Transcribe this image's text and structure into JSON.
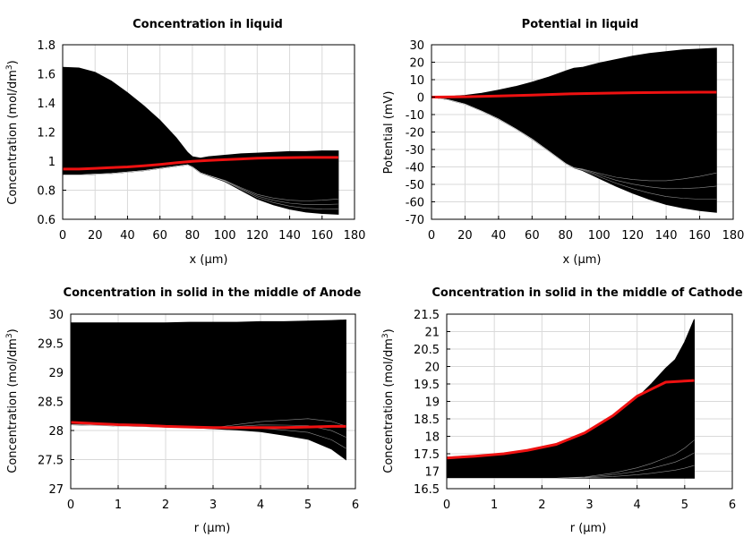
{
  "chart_data": [
    {
      "id": "p1",
      "type": "line",
      "title": "Concentration in liquid",
      "xlabel": "x (µm)",
      "ylabel": "Concentration (mol/dm",
      "ylabel_sup": "3",
      "ylabel_end": ")",
      "xlim": [
        0,
        180
      ],
      "ylim": [
        0.6,
        1.8
      ],
      "xticks": [
        "0",
        "20",
        "40",
        "60",
        "80",
        "100",
        "120",
        "140",
        "160",
        "180"
      ],
      "yticks": [
        "0.6",
        "0.8",
        "1",
        "1.2",
        "1.4",
        "1.6",
        "1.8"
      ],
      "grid": true,
      "band": {
        "x": [
          0,
          10,
          20,
          30,
          40,
          50,
          60,
          70,
          77,
          80,
          85,
          90,
          100,
          110,
          120,
          130,
          140,
          150,
          160,
          170
        ],
        "upper": [
          1.645,
          1.64,
          1.61,
          1.55,
          1.47,
          1.38,
          1.28,
          1.16,
          1.06,
          1.03,
          1.02,
          1.03,
          1.04,
          1.05,
          1.055,
          1.06,
          1.065,
          1.065,
          1.07,
          1.07
        ],
        "lower": [
          0.905,
          0.905,
          0.91,
          0.915,
          0.925,
          0.935,
          0.95,
          0.965,
          0.975,
          0.96,
          0.92,
          0.9,
          0.86,
          0.8,
          0.74,
          0.7,
          0.67,
          0.65,
          0.64,
          0.635
        ]
      },
      "series": [
        {
          "name": "",
          "color": "#ee1111",
          "x": [
            0,
            10,
            20,
            30,
            40,
            50,
            60,
            70,
            80,
            90,
            100,
            110,
            120,
            130,
            140,
            150,
            160,
            170
          ],
          "values": [
            0.945,
            0.945,
            0.95,
            0.955,
            0.96,
            0.968,
            0.977,
            0.988,
            0.998,
            1.005,
            1.01,
            1.015,
            1.02,
            1.022,
            1.024,
            1.025,
            1.025,
            1.025
          ]
        }
      ]
    },
    {
      "id": "p2",
      "type": "line",
      "title": "Potential in liquid",
      "xlabel": "x (µm)",
      "ylabel": "Potential (mV)",
      "ylabel_sup": "",
      "ylabel_end": "",
      "xlim": [
        0,
        180
      ],
      "ylim": [
        -70,
        30
      ],
      "xticks": [
        "0",
        "20",
        "40",
        "60",
        "80",
        "100",
        "120",
        "140",
        "160",
        "180"
      ],
      "yticks": [
        "-70",
        "-60",
        "-50",
        "-40",
        "-30",
        "-20",
        "-10",
        "0",
        "10",
        "20",
        "30"
      ],
      "grid": true,
      "band": {
        "x": [
          0,
          10,
          20,
          30,
          40,
          50,
          60,
          70,
          80,
          85,
          90,
          100,
          110,
          120,
          130,
          140,
          150,
          160,
          170
        ],
        "upper": [
          0,
          0.3,
          1,
          2.2,
          4,
          6,
          8.5,
          11.5,
          15,
          16.5,
          17,
          19.5,
          21.5,
          23.5,
          25,
          26,
          27,
          27.5,
          28
        ],
        "lower": [
          0,
          -1.5,
          -4,
          -8,
          -12.5,
          -18,
          -24,
          -31,
          -38,
          -40.5,
          -42,
          -46.5,
          -51,
          -55,
          -58.5,
          -61.5,
          -63.5,
          -65,
          -66
        ]
      },
      "series": [
        {
          "name": "",
          "color": "#ee1111",
          "x": [
            0,
            20,
            40,
            60,
            80,
            100,
            120,
            140,
            160,
            170
          ],
          "values": [
            0,
            0.2,
            0.6,
            1.2,
            1.8,
            2.2,
            2.5,
            2.7,
            2.8,
            2.8
          ]
        }
      ]
    },
    {
      "id": "p3",
      "type": "line",
      "title": "Concentration in solid in the middle of Anode",
      "xlabel": "r (µm)",
      "ylabel": "Concentration (mol/dm",
      "ylabel_sup": "3",
      "ylabel_end": ")",
      "xlim": [
        0,
        6
      ],
      "ylim": [
        27,
        30
      ],
      "xticks": [
        "0",
        "1",
        "2",
        "3",
        "4",
        "5",
        "6"
      ],
      "yticks": [
        "27",
        "27.5",
        "28",
        "28.5",
        "29",
        "29.5",
        "30"
      ],
      "grid": true,
      "band": {
        "x": [
          0,
          0.5,
          1,
          1.5,
          2,
          2.5,
          3,
          3.5,
          4,
          4.5,
          5,
          5.5,
          5.8
        ],
        "upper": [
          29.85,
          29.85,
          29.85,
          29.85,
          29.85,
          29.86,
          29.86,
          29.86,
          29.87,
          29.87,
          29.88,
          29.89,
          29.9
        ],
        "lower": [
          28.1,
          28.09,
          28.08,
          28.07,
          28.06,
          28.05,
          28.03,
          28.01,
          27.98,
          27.92,
          27.85,
          27.68,
          27.5
        ]
      },
      "series": [
        {
          "name": "",
          "color": "#ee1111",
          "x": [
            0,
            0.5,
            1,
            1.5,
            2,
            2.5,
            3,
            3.5,
            4,
            4.5,
            5,
            5.5,
            5.8
          ],
          "values": [
            28.14,
            28.12,
            28.1,
            28.09,
            28.07,
            28.06,
            28.05,
            28.05,
            28.05,
            28.05,
            28.06,
            28.07,
            28.07
          ]
        }
      ]
    },
    {
      "id": "p4",
      "type": "line",
      "title": "Concentration in solid in the middle of Cathode",
      "xlabel": "r (µm)",
      "ylabel": "Concentration (mol/dm",
      "ylabel_sup": "3",
      "ylabel_end": ")",
      "xlim": [
        0,
        6
      ],
      "ylim": [
        16.5,
        21.5
      ],
      "xticks": [
        "0",
        "1",
        "2",
        "3",
        "4",
        "5",
        "6"
      ],
      "yticks": [
        "16.5",
        "17",
        "17.5",
        "18",
        "18.5",
        "19",
        "19.5",
        "20",
        "20.5",
        "21",
        "21.5"
      ],
      "grid": true,
      "band": {
        "x": [
          0,
          0.6,
          1.2,
          1.7,
          2.3,
          2.9,
          3.5,
          4.0,
          4.3,
          4.6,
          4.8,
          5.0,
          5.2
        ],
        "upper": [
          17.4,
          17.45,
          17.5,
          17.6,
          17.75,
          18.05,
          18.55,
          19.1,
          19.5,
          19.95,
          20.2,
          20.7,
          21.35
        ],
        "lower": [
          16.8,
          16.8,
          16.8,
          16.8,
          16.8,
          16.8,
          16.8,
          16.8,
          16.8,
          16.8,
          16.8,
          16.8,
          16.8
        ]
      },
      "series": [
        {
          "name": "",
          "color": "#ee1111",
          "x": [
            0,
            0.6,
            1.2,
            1.7,
            2.3,
            2.9,
            3.5,
            4.0,
            4.3,
            4.6,
            5.2
          ],
          "values": [
            17.38,
            17.43,
            17.5,
            17.6,
            17.77,
            18.1,
            18.6,
            19.15,
            19.35,
            19.55,
            19.6
          ]
        }
      ]
    }
  ]
}
